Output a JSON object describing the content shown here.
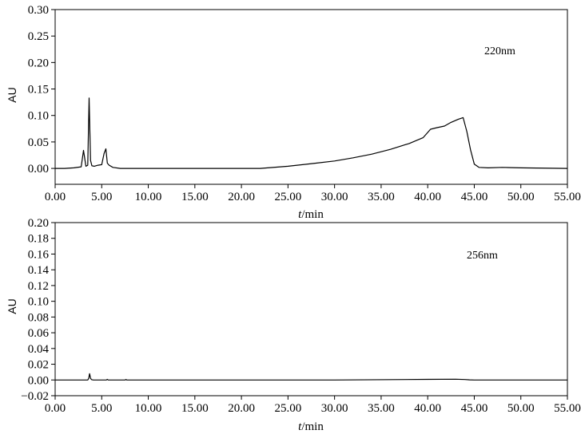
{
  "chart_data": [
    {
      "type": "line",
      "annotation": "220nm",
      "xlabel_italic": "t",
      "xlabel_rest": "/min",
      "ylabel": "AU",
      "xlim": [
        0,
        55
      ],
      "ylim": [
        -0.03,
        0.3
      ],
      "xticks": [
        0,
        5,
        10,
        15,
        20,
        25,
        30,
        35,
        40,
        45,
        50,
        55
      ],
      "xtick_labels": [
        "0.00",
        "5.00",
        "10.00",
        "15.00",
        "20.00",
        "25.00",
        "30.00",
        "35.00",
        "40.00",
        "45.00",
        "50.00",
        "55.00"
      ],
      "yticks": [
        0,
        0.05,
        0.1,
        0.15,
        0.2,
        0.25,
        0.3
      ],
      "ytick_labels": [
        "0.00",
        "0.05",
        "0.10",
        "0.15",
        "0.20",
        "0.25",
        "0.30"
      ],
      "series": [
        {
          "x": [
            0,
            1,
            2,
            2.8,
            3.05,
            3.3,
            3.5,
            3.65,
            3.8,
            3.95,
            4.2,
            4.6,
            5.0,
            5.25,
            5.45,
            5.6,
            5.8,
            6.2,
            7.0,
            10,
            15,
            20,
            22,
            25,
            28,
            30,
            32,
            34,
            36,
            38,
            39.5,
            40.3,
            41.0,
            41.8,
            42.5,
            43.3,
            43.8,
            44.2,
            44.6,
            45.0,
            45.5,
            46.5,
            48,
            50,
            55
          ],
          "y": [
            0,
            0,
            0.001,
            0.003,
            0.034,
            0.004,
            0.006,
            0.133,
            0.015,
            0.005,
            0.004,
            0.006,
            0.007,
            0.028,
            0.037,
            0.01,
            0.006,
            0.002,
            0,
            0,
            0,
            0,
            0,
            0.004,
            0.01,
            0.014,
            0.02,
            0.027,
            0.036,
            0.047,
            0.058,
            0.074,
            0.077,
            0.08,
            0.087,
            0.093,
            0.096,
            0.07,
            0.035,
            0.008,
            0.002,
            0.001,
            0.002,
            0.001,
            0
          ]
        }
      ]
    },
    {
      "type": "line",
      "annotation": "256nm",
      "xlabel_italic": "t",
      "xlabel_rest": "/min",
      "ylabel": "AU",
      "xlim": [
        0,
        55
      ],
      "ylim": [
        -0.02,
        0.2
      ],
      "xticks": [
        0,
        5,
        10,
        15,
        20,
        25,
        30,
        35,
        40,
        45,
        50,
        55
      ],
      "xtick_labels": [
        "0.00",
        "5.00",
        "10.00",
        "15.00",
        "20.00",
        "25.00",
        "30.00",
        "35.00",
        "40.00",
        "45.00",
        "50.00",
        "55.00"
      ],
      "yticks": [
        -0.02,
        0,
        0.02,
        0.04,
        0.06,
        0.08,
        0.1,
        0.12,
        0.14,
        0.16,
        0.18,
        0.2
      ],
      "ytick_labels": [
        "−0.02",
        "0.00",
        "0.02",
        "0.04",
        "0.06",
        "0.08",
        "0.10",
        "0.12",
        "0.14",
        "0.16",
        "0.18",
        "0.20"
      ],
      "series": [
        {
          "x": [
            0,
            3.5,
            3.6,
            3.7,
            3.8,
            3.9,
            4.1,
            5.5,
            5.6,
            5.7,
            7.5,
            7.6,
            7.7,
            10,
            20,
            30,
            40,
            43,
            44,
            44.5,
            45,
            55
          ],
          "y": [
            0,
            0,
            0.002,
            0.008,
            0.002,
            0.0005,
            0,
            0,
            0.0008,
            0,
            0,
            0.0006,
            0,
            0,
            0,
            0,
            0.0008,
            0.001,
            0.0006,
            0.0002,
            0,
            0
          ]
        }
      ]
    }
  ]
}
